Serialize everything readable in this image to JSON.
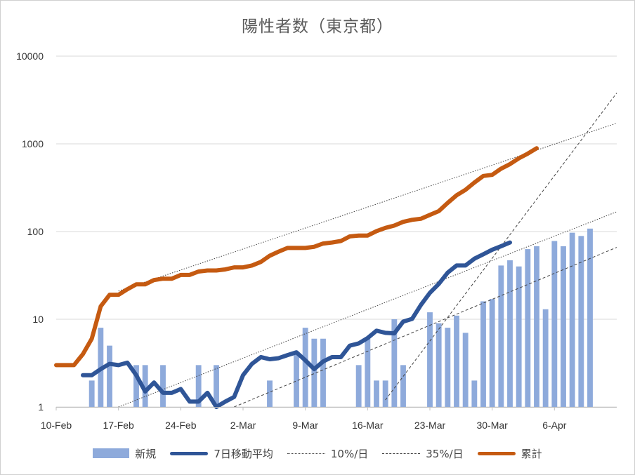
{
  "chart_data": {
    "type": "bar+line",
    "title": "陽性者数（東京都）",
    "yscale": "log",
    "ylim": [
      1,
      10000
    ],
    "yticks": [
      "1",
      "10",
      "100",
      "1000",
      "10000"
    ],
    "x_start": "10-Feb",
    "x_end": "13-Apr",
    "xticks": [
      "10-Feb",
      "17-Feb",
      "24-Feb",
      "2-Mar",
      "9-Mar",
      "16-Mar",
      "23-Mar",
      "30-Mar",
      "6-Apr"
    ],
    "gridlines": "horizontal",
    "legend_position": "bottom",
    "series": [
      {
        "name": "新規",
        "kind": "bar",
        "color": "#8eaadb",
        "points": [
          [
            "14-Feb",
            2
          ],
          [
            "15-Feb",
            8
          ],
          [
            "16-Feb",
            5
          ],
          [
            "19-Feb",
            3
          ],
          [
            "20-Feb",
            3
          ],
          [
            "22-Feb",
            3
          ],
          [
            "26-Feb",
            3
          ],
          [
            "28-Feb",
            3
          ],
          [
            "5-Mar",
            2
          ],
          [
            "8-Mar",
            4
          ],
          [
            "9-Mar",
            8
          ],
          [
            "10-Mar",
            6
          ],
          [
            "11-Mar",
            6
          ],
          [
            "15-Mar",
            3
          ],
          [
            "16-Mar",
            6
          ],
          [
            "17-Mar",
            2
          ],
          [
            "18-Mar",
            2
          ],
          [
            "19-Mar",
            10
          ],
          [
            "20-Mar",
            3
          ],
          [
            "23-Mar",
            12
          ],
          [
            "24-Mar",
            9
          ],
          [
            "25-Mar",
            8
          ],
          [
            "26-Mar",
            11
          ],
          [
            "27-Mar",
            7
          ],
          [
            "28-Mar",
            2
          ],
          [
            "29-Mar",
            16
          ],
          [
            "30-Mar",
            17
          ],
          [
            "31-Mar",
            41
          ],
          [
            "1-Apr",
            47
          ],
          [
            "2-Apr",
            40
          ],
          [
            "3-Apr",
            63
          ],
          [
            "4-Apr",
            68
          ],
          [
            "5-Apr",
            13
          ],
          [
            "6-Apr",
            78
          ],
          [
            "7-Apr",
            68
          ],
          [
            "8-Apr",
            97
          ],
          [
            "9-Apr",
            89
          ],
          [
            "10-Apr",
            108
          ]
        ]
      },
      {
        "name": "7日移動平均",
        "kind": "line",
        "color": "#2f5597",
        "points": [
          [
            "13-Feb",
            2.3
          ],
          [
            "14-Feb",
            2.3
          ],
          [
            "15-Feb",
            2.7
          ],
          [
            "16-Feb",
            3.1
          ],
          [
            "17-Feb",
            3.0
          ],
          [
            "18-Feb",
            3.2
          ],
          [
            "19-Feb",
            2.3
          ],
          [
            "20-Feb",
            1.5
          ],
          [
            "21-Feb",
            1.9
          ],
          [
            "22-Feb",
            1.45
          ],
          [
            "23-Feb",
            1.45
          ],
          [
            "24-Feb",
            1.6
          ],
          [
            "25-Feb",
            1.15
          ],
          [
            "26-Feb",
            1.15
          ],
          [
            "27-Feb",
            1.45
          ],
          [
            "28-Feb",
            1.0
          ],
          [
            "29-Feb",
            1.15
          ],
          [
            "1-Mar",
            1.3
          ],
          [
            "2-Mar",
            2.3
          ],
          [
            "3-Mar",
            3.1
          ],
          [
            "4-Mar",
            3.7
          ],
          [
            "5-Mar",
            3.5
          ],
          [
            "6-Mar",
            3.6
          ],
          [
            "7-Mar",
            3.9
          ],
          [
            "8-Mar",
            4.2
          ],
          [
            "9-Mar",
            3.4
          ],
          [
            "10-Mar",
            2.7
          ],
          [
            "11-Mar",
            3.3
          ],
          [
            "12-Mar",
            3.7
          ],
          [
            "13-Mar",
            3.7
          ],
          [
            "14-Mar",
            5.0
          ],
          [
            "15-Mar",
            5.3
          ],
          [
            "16-Mar",
            6.1
          ],
          [
            "17-Mar",
            7.4
          ],
          [
            "18-Mar",
            7.0
          ],
          [
            "19-Mar",
            6.9
          ],
          [
            "20-Mar",
            9.4
          ],
          [
            "21-Mar",
            10.1
          ],
          [
            "22-Mar",
            14.6
          ],
          [
            "23-Mar",
            20.0
          ],
          [
            "24-Mar",
            25.3
          ],
          [
            "25-Mar",
            34.0
          ],
          [
            "26-Mar",
            41.0
          ],
          [
            "27-Mar",
            41.0
          ],
          [
            "28-Mar",
            49.0
          ],
          [
            "29-Mar",
            55.0
          ],
          [
            "30-Mar",
            62.0
          ],
          [
            "31-Mar",
            68.0
          ],
          [
            "1-Apr",
            75.0
          ]
        ]
      },
      {
        "name": "10%/日",
        "kind": "trend",
        "color": "#444444",
        "points": [
          [
            "17-Feb",
            1.0
          ],
          [
            "13-Apr",
            168.0
          ]
        ]
      },
      {
        "name": "10%/日",
        "kind": "trend",
        "color": "#444444",
        "points": [
          [
            "17-Feb",
            21.0
          ],
          [
            "13-Apr",
            1720.0
          ]
        ]
      },
      {
        "name": "35%/日",
        "kind": "trend",
        "color": "#444444",
        "points": [
          [
            "18-Mar",
            1.2
          ],
          [
            "13-Apr",
            3800.0
          ]
        ]
      },
      {
        "name": "35%/日",
        "kind": "trend",
        "color": "#444444",
        "points": [
          [
            "1-Mar",
            1.0
          ],
          [
            "13-Apr",
            66.0
          ]
        ]
      },
      {
        "name": "累計",
        "kind": "line",
        "color": "#c55a11",
        "points": [
          [
            "10-Feb",
            3
          ],
          [
            "11-Feb",
            3
          ],
          [
            "12-Feb",
            3
          ],
          [
            "13-Feb",
            4
          ],
          [
            "14-Feb",
            6
          ],
          [
            "15-Feb",
            14
          ],
          [
            "16-Feb",
            19
          ],
          [
            "17-Feb",
            19
          ],
          [
            "18-Feb",
            22
          ],
          [
            "19-Feb",
            25
          ],
          [
            "20-Feb",
            25
          ],
          [
            "21-Feb",
            28
          ],
          [
            "22-Feb",
            29
          ],
          [
            "23-Feb",
            29
          ],
          [
            "24-Feb",
            32
          ],
          [
            "25-Feb",
            32
          ],
          [
            "26-Feb",
            35
          ],
          [
            "27-Feb",
            36
          ],
          [
            "28-Feb",
            36
          ],
          [
            "29-Feb",
            37
          ],
          [
            "1-Mar",
            39
          ],
          [
            "2-Mar",
            39
          ],
          [
            "3-Mar",
            41
          ],
          [
            "4-Mar",
            45
          ],
          [
            "5-Mar",
            53
          ],
          [
            "6-Mar",
            59
          ],
          [
            "7-Mar",
            65
          ],
          [
            "8-Mar",
            65
          ],
          [
            "9-Mar",
            65
          ],
          [
            "10-Mar",
            67
          ],
          [
            "11-Mar",
            73
          ],
          [
            "12-Mar",
            75
          ],
          [
            "13-Mar",
            78
          ],
          [
            "14-Mar",
            88
          ],
          [
            "15-Mar",
            90
          ],
          [
            "16-Mar",
            90
          ],
          [
            "17-Mar",
            101
          ],
          [
            "18-Mar",
            110
          ],
          [
            "19-Mar",
            117
          ],
          [
            "20-Mar",
            129
          ],
          [
            "21-Mar",
            136
          ],
          [
            "22-Mar",
            140
          ],
          [
            "23-Mar",
            155
          ],
          [
            "24-Mar",
            171
          ],
          [
            "25-Mar",
            212
          ],
          [
            "26-Mar",
            259
          ],
          [
            "27-Mar",
            299
          ],
          [
            "28-Mar",
            362
          ],
          [
            "29-Mar",
            430
          ],
          [
            "30-Mar",
            443
          ],
          [
            "31-Mar",
            521
          ],
          [
            "1-Apr",
            587
          ],
          [
            "2-Apr",
            684
          ],
          [
            "3-Apr",
            773
          ],
          [
            "4-Apr",
            891
          ]
        ]
      }
    ]
  }
}
